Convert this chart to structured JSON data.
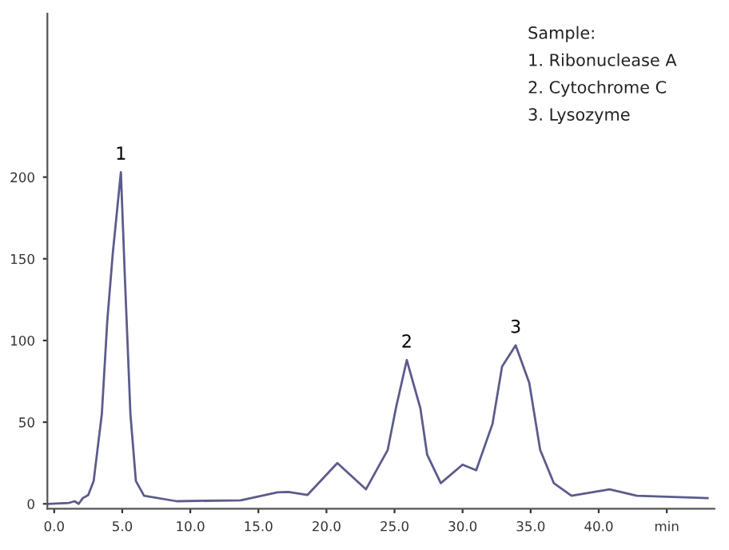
{
  "chart_data": {
    "type": "line",
    "x": [
      -0.5,
      1.1,
      1.5,
      1.8,
      2.1,
      2.5,
      2.9,
      3.5,
      3.9,
      4.3,
      4.9,
      5.2,
      5.6,
      6.0,
      6.6,
      9.0,
      13.7,
      16.4,
      17.2,
      18.6,
      20.8,
      22.9,
      24.5,
      25.1,
      25.9,
      26.9,
      27.4,
      28.4,
      30.0,
      31.0,
      32.2,
      32.9,
      33.9,
      34.9,
      35.7,
      36.7,
      38.0,
      40.8,
      42.8,
      48.0
    ],
    "series": [
      {
        "color": "#5b5b8c",
        "values": [
          0,
          0.6,
          1.6,
          0,
          3.5,
          5.4,
          14,
          55,
          112,
          153,
          203,
          137,
          55,
          14,
          5,
          1.6,
          2.2,
          7,
          7.3,
          5.4,
          25,
          8.9,
          33,
          58.5,
          88,
          58.5,
          30,
          12.7,
          24,
          20.6,
          49,
          84,
          97,
          74,
          33,
          12.7,
          5,
          8.9,
          5,
          3.5
        ]
      }
    ],
    "xlim": [
      -0.5,
      48.5
    ],
    "xticks": [
      {
        "value": 0,
        "label": "0.0"
      },
      {
        "value": 5,
        "label": "5.0"
      },
      {
        "value": 10,
        "label": "10.0"
      },
      {
        "value": 15,
        "label": "15.0"
      },
      {
        "value": 20,
        "label": "20.0"
      },
      {
        "value": 25,
        "label": "25.0"
      },
      {
        "value": 30,
        "label": "30.0"
      },
      {
        "value": 35,
        "label": "35.0"
      },
      {
        "value": 40,
        "label": "40.0"
      },
      {
        "value": 45,
        "label": "min"
      }
    ],
    "ylim": [
      -3,
      300
    ],
    "yticks": [
      0,
      50,
      100,
      150,
      200
    ],
    "grid": false,
    "legend": false,
    "annotations": [
      {
        "text": "1",
        "x": 4.9,
        "y": 203
      },
      {
        "text": "2",
        "x": 25.9,
        "y": 88
      },
      {
        "text": "3",
        "x": 33.9,
        "y": 97
      },
      "Sample:",
      "1. Ribonuclease A",
      "2. Cytochrome C",
      "3. Lysozyme"
    ]
  }
}
